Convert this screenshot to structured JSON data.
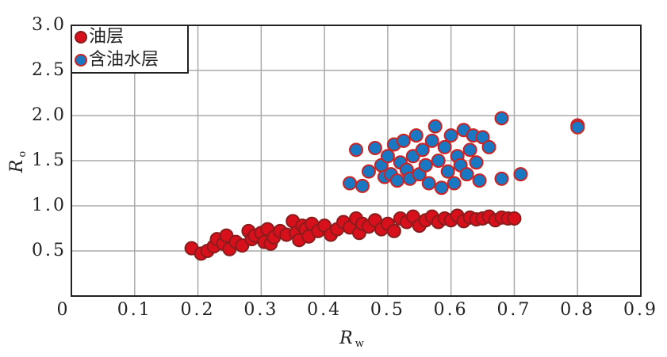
{
  "chart_data": {
    "type": "scatter",
    "xlabel": "R",
    "xlabel_subscript": "w",
    "ylabel": "R",
    "ylabel_subscript": "o",
    "xlim": [
      0,
      0.9
    ],
    "ylim": [
      0,
      3
    ],
    "xticks": [
      0,
      0.1,
      0.2,
      0.3,
      0.4,
      0.5,
      0.6,
      0.7,
      0.8,
      0.9
    ],
    "yticks": [
      0.5,
      {
        "value": 1,
        "label": "1.0"
      },
      1.5,
      {
        "value": 2,
        "label": "2.0"
      },
      2.5,
      {
        "value": 3,
        "label": "3.0"
      }
    ],
    "grid": true,
    "legend": "upper left",
    "series": [
      {
        "name": "油层",
        "color": "#d8101c",
        "edgecolor": "#8a1c1c",
        "x": [
          0.19,
          0.205,
          0.215,
          0.225,
          0.23,
          0.24,
          0.245,
          0.25,
          0.26,
          0.27,
          0.28,
          0.285,
          0.29,
          0.3,
          0.305,
          0.31,
          0.315,
          0.32,
          0.33,
          0.34,
          0.35,
          0.355,
          0.36,
          0.365,
          0.37,
          0.375,
          0.38,
          0.39,
          0.4,
          0.41,
          0.42,
          0.43,
          0.44,
          0.45,
          0.455,
          0.46,
          0.47,
          0.48,
          0.49,
          0.5,
          0.51,
          0.52,
          0.53,
          0.54,
          0.55,
          0.56,
          0.57,
          0.58,
          0.59,
          0.6,
          0.61,
          0.62,
          0.63,
          0.64,
          0.65,
          0.66,
          0.67,
          0.68,
          0.69,
          0.7
        ],
        "values": [
          0.53,
          0.47,
          0.5,
          0.55,
          0.63,
          0.58,
          0.67,
          0.52,
          0.6,
          0.56,
          0.72,
          0.63,
          0.67,
          0.7,
          0.6,
          0.74,
          0.58,
          0.65,
          0.72,
          0.68,
          0.83,
          0.7,
          0.62,
          0.78,
          0.74,
          0.66,
          0.8,
          0.72,
          0.78,
          0.68,
          0.74,
          0.82,
          0.76,
          0.86,
          0.7,
          0.8,
          0.77,
          0.84,
          0.74,
          0.8,
          0.72,
          0.86,
          0.82,
          0.88,
          0.78,
          0.84,
          0.88,
          0.82,
          0.86,
          0.84,
          0.89,
          0.83,
          0.87,
          0.85,
          0.86,
          0.88,
          0.84,
          0.87,
          0.86,
          0.86
        ]
      },
      {
        "name": "含油水层",
        "color": "#1a78c2",
        "edgecolor": "#cc2222",
        "x": [
          0.44,
          0.45,
          0.46,
          0.47,
          0.48,
          0.49,
          0.495,
          0.5,
          0.505,
          0.51,
          0.515,
          0.52,
          0.525,
          0.53,
          0.535,
          0.54,
          0.545,
          0.55,
          0.555,
          0.56,
          0.565,
          0.57,
          0.575,
          0.58,
          0.585,
          0.59,
          0.595,
          0.6,
          0.605,
          0.61,
          0.615,
          0.62,
          0.625,
          0.63,
          0.635,
          0.64,
          0.645,
          0.65,
          0.66,
          0.68,
          0.68,
          0.71,
          0.8,
          0.8
        ],
        "values": [
          1.25,
          1.62,
          1.22,
          1.38,
          1.64,
          1.45,
          1.32,
          1.55,
          1.35,
          1.68,
          1.28,
          1.48,
          1.72,
          1.4,
          1.3,
          1.55,
          1.78,
          1.35,
          1.62,
          1.45,
          1.25,
          1.72,
          1.88,
          1.5,
          1.2,
          1.65,
          1.38,
          1.78,
          1.25,
          1.55,
          1.45,
          1.84,
          1.35,
          1.62,
          1.78,
          1.48,
          1.28,
          1.76,
          1.65,
          1.97,
          1.3,
          1.35,
          1.89,
          1.87
        ]
      }
    ]
  }
}
